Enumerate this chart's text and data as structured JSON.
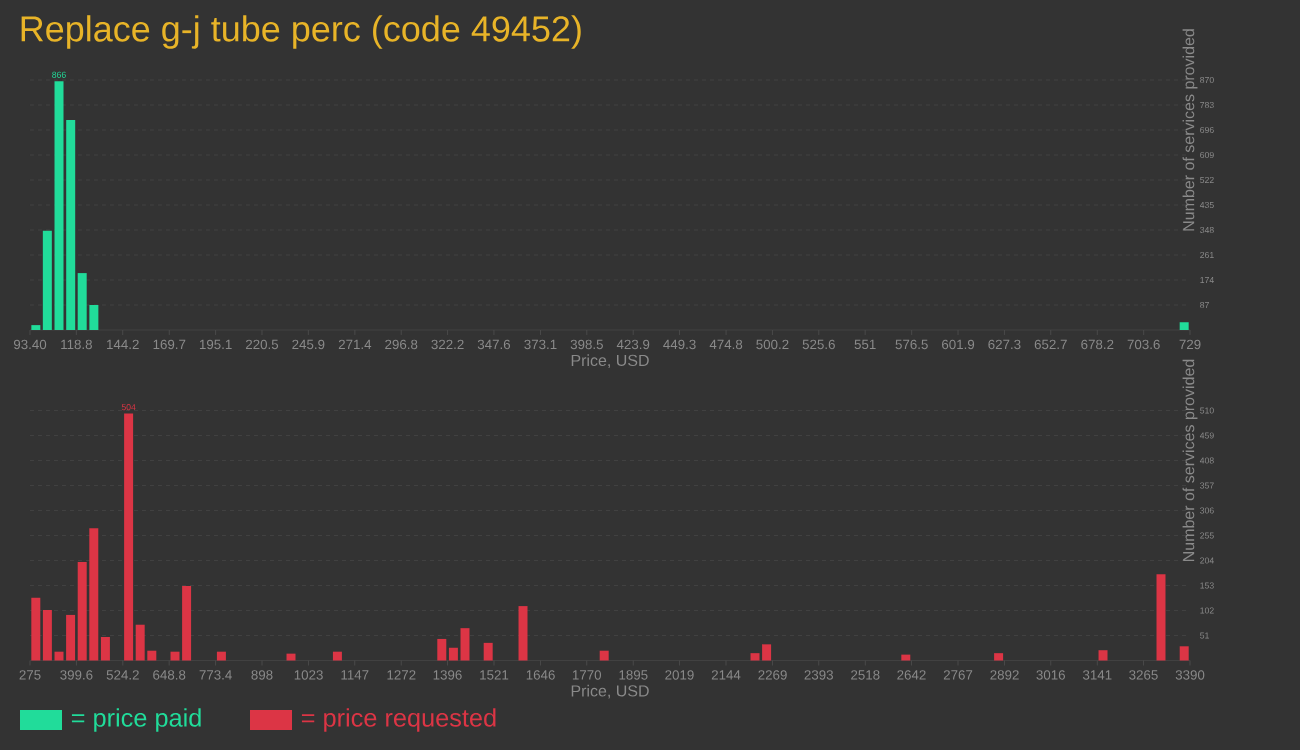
{
  "chart_data": [
    {
      "type": "bar",
      "title": "Replace g-j tube perc (code 49452)",
      "xlabel": "Price, USD",
      "ylabel": "Number of services provided",
      "x": [
        96.6,
        102.9,
        109.3,
        115.7,
        122.0,
        128.4,
        725.8
      ],
      "series": [
        {
          "name": "= price paid",
          "color": "#21dc9a",
          "values": [
            17,
            345,
            866,
            731,
            198,
            87,
            27
          ],
          "value_labels": [
            null,
            null,
            "866",
            null,
            null,
            null,
            null
          ]
        }
      ],
      "xlim": [
        93.4,
        729
      ],
      "xticks": [
        {
          "value": 93.4,
          "label": "93.40"
        },
        118.8,
        144.2,
        169.7,
        195.1,
        220.5,
        245.9,
        271.4,
        296.8,
        322.2,
        347.6,
        373.1,
        398.5,
        423.9,
        449.3,
        474.8,
        500.2,
        525.6,
        551,
        576.5,
        601.9,
        627.3,
        652.7,
        678.2,
        703.6,
        729
      ],
      "ylim": [
        0,
        870
      ],
      "yticks": [
        87,
        174,
        261,
        348,
        435,
        522,
        609,
        696,
        783,
        870
      ],
      "grid": "y",
      "legend": "bottom left"
    },
    {
      "type": "bar",
      "xlabel": "Price, USD",
      "ylabel": "Number of services provided",
      "x": [
        290.6,
        321.7,
        352.9,
        384.0,
        415.2,
        446.3,
        477.5,
        539.8,
        570.9,
        602.1,
        664.4,
        695.5,
        789.0,
        975.9,
        1100.5,
        1380.8,
        1412.0,
        1443.1,
        1505.4,
        1598.9,
        1816.9,
        2221.9,
        2253.0,
        2626.8,
        2876.0,
        3156.4,
        3312.1,
        3374.4
      ],
      "series": [
        {
          "name": "= price requested",
          "color": "#dc3545",
          "values": [
            128,
            103,
            18,
            93,
            201,
            270,
            48,
            504,
            73,
            20,
            18,
            152,
            18,
            14,
            18,
            44,
            26,
            66,
            36,
            111,
            20,
            15,
            33,
            12,
            15,
            21,
            176,
            29
          ],
          "value_labels": [
            null,
            null,
            null,
            null,
            null,
            null,
            null,
            "504",
            null,
            null,
            null,
            null,
            null,
            null,
            null,
            null,
            null,
            null,
            null,
            null,
            null,
            null,
            null,
            null,
            null,
            null,
            null,
            null
          ]
        }
      ],
      "xlim": [
        275,
        3390
      ],
      "xticks": [
        275,
        399.6,
        524.2,
        648.8,
        773.4,
        898,
        1023,
        1147,
        1272,
        1396,
        1521,
        1646,
        1770,
        1895,
        2019,
        2144,
        2269,
        2393,
        2518,
        2642,
        2767,
        2892,
        3016,
        3141,
        3265,
        3390
      ],
      "ylim": [
        0,
        510
      ],
      "yticks": [
        51,
        102,
        153,
        204,
        255,
        306,
        357,
        408,
        459,
        510
      ],
      "grid": "y",
      "legend": "bottom left"
    }
  ]
}
